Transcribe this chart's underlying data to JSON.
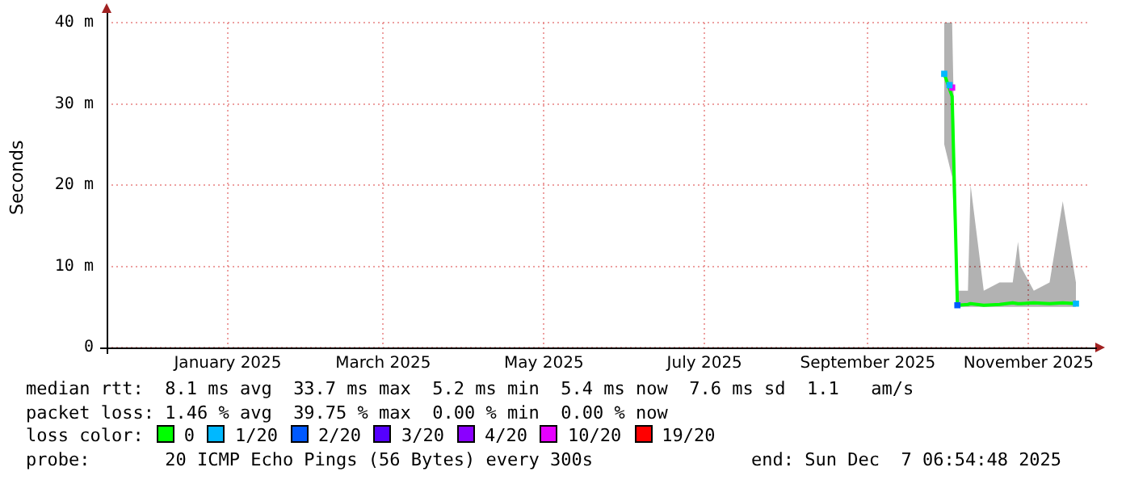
{
  "chart_data": {
    "type": "line",
    "ylabel": "Seconds",
    "legend_title": "loss color:",
    "legend": "bottom",
    "grid": true,
    "marker": "square",
    "xlim": [
      "2024-11-30",
      "2025-12-07T06:54"
    ],
    "xticks": [
      {
        "value": "2025-01-15",
        "label": "January 2025"
      },
      {
        "value": "2025-03-15",
        "label": "March 2025"
      },
      {
        "value": "2025-05-15",
        "label": "May 2025"
      },
      {
        "value": "2025-07-15",
        "label": "July 2025"
      },
      {
        "value": "2025-09-15",
        "label": "September 2025"
      },
      {
        "value": "2025-11-15",
        "label": "November 2025"
      }
    ],
    "ylim": [
      0,
      40
    ],
    "yticks": [
      0,
      {
        "value": 10,
        "label": "10 m"
      },
      {
        "value": 20,
        "label": "20 m"
      },
      {
        "value": 30,
        "label": "30 m"
      },
      {
        "value": 40,
        "label": "40 m"
      }
    ],
    "series": [
      {
        "name": "0",
        "color": "#00ff00",
        "marker": "none",
        "x": [
          "2025-10-14",
          "2025-10-17",
          "2025-10-19",
          "2025-10-23",
          "2025-10-24",
          "2025-10-29",
          "2025-11-04",
          "2025-11-09",
          "2025-11-11",
          "2025-11-12",
          "2025-11-17",
          "2025-11-23",
          "2025-11-28",
          "2025-12-03"
        ],
        "values": [
          33.7,
          30.9,
          5.2,
          5.3,
          5.4,
          5.2,
          5.3,
          5.5,
          5.4,
          5.4,
          5.5,
          5.4,
          5.5,
          5.4
        ],
        "lower": [
          25,
          21,
          5,
          5,
          5,
          5,
          5,
          5,
          5,
          5,
          5,
          5,
          5,
          5
        ],
        "upper": [
          40,
          40,
          7,
          7,
          20,
          7,
          8,
          8,
          13,
          10,
          7,
          8,
          18,
          8
        ]
      },
      {
        "name": "1/20",
        "type": "scatter",
        "color": "#00b8ff",
        "x": [
          "2025-10-14",
          "2025-10-16",
          "2025-12-03"
        ],
        "values": [
          33.7,
          32.3,
          5.4
        ]
      },
      {
        "name": "2/20",
        "type": "scatter",
        "color": "#0059ff",
        "x": [
          "2025-10-19"
        ],
        "values": [
          5.2
        ]
      },
      {
        "name": "3/20",
        "type": "scatter",
        "color": "#5500ff"
      },
      {
        "name": "4/20",
        "type": "scatter",
        "color": "#8a00ff"
      },
      {
        "name": "10/20",
        "type": "scatter",
        "color": "#e600ff",
        "x": [
          "2025-10-17"
        ],
        "values": [
          32
        ]
      },
      {
        "name": "19/20",
        "type": "scatter",
        "color": "#ff0000"
      }
    ],
    "annotations": [
      "median rtt:  8.1 ms avg  33.7 ms max  5.2 ms min  5.4 ms now  7.6 ms sd  1.1   am/s",
      "packet loss: 1.46 % avg  39.75 % max  0.00 % min  0.00 % now",
      "probe:       20 ICMP Echo Pings (56 Bytes) every 300s",
      "end: Sun Dec  7 06:54:48 2025"
    ]
  }
}
